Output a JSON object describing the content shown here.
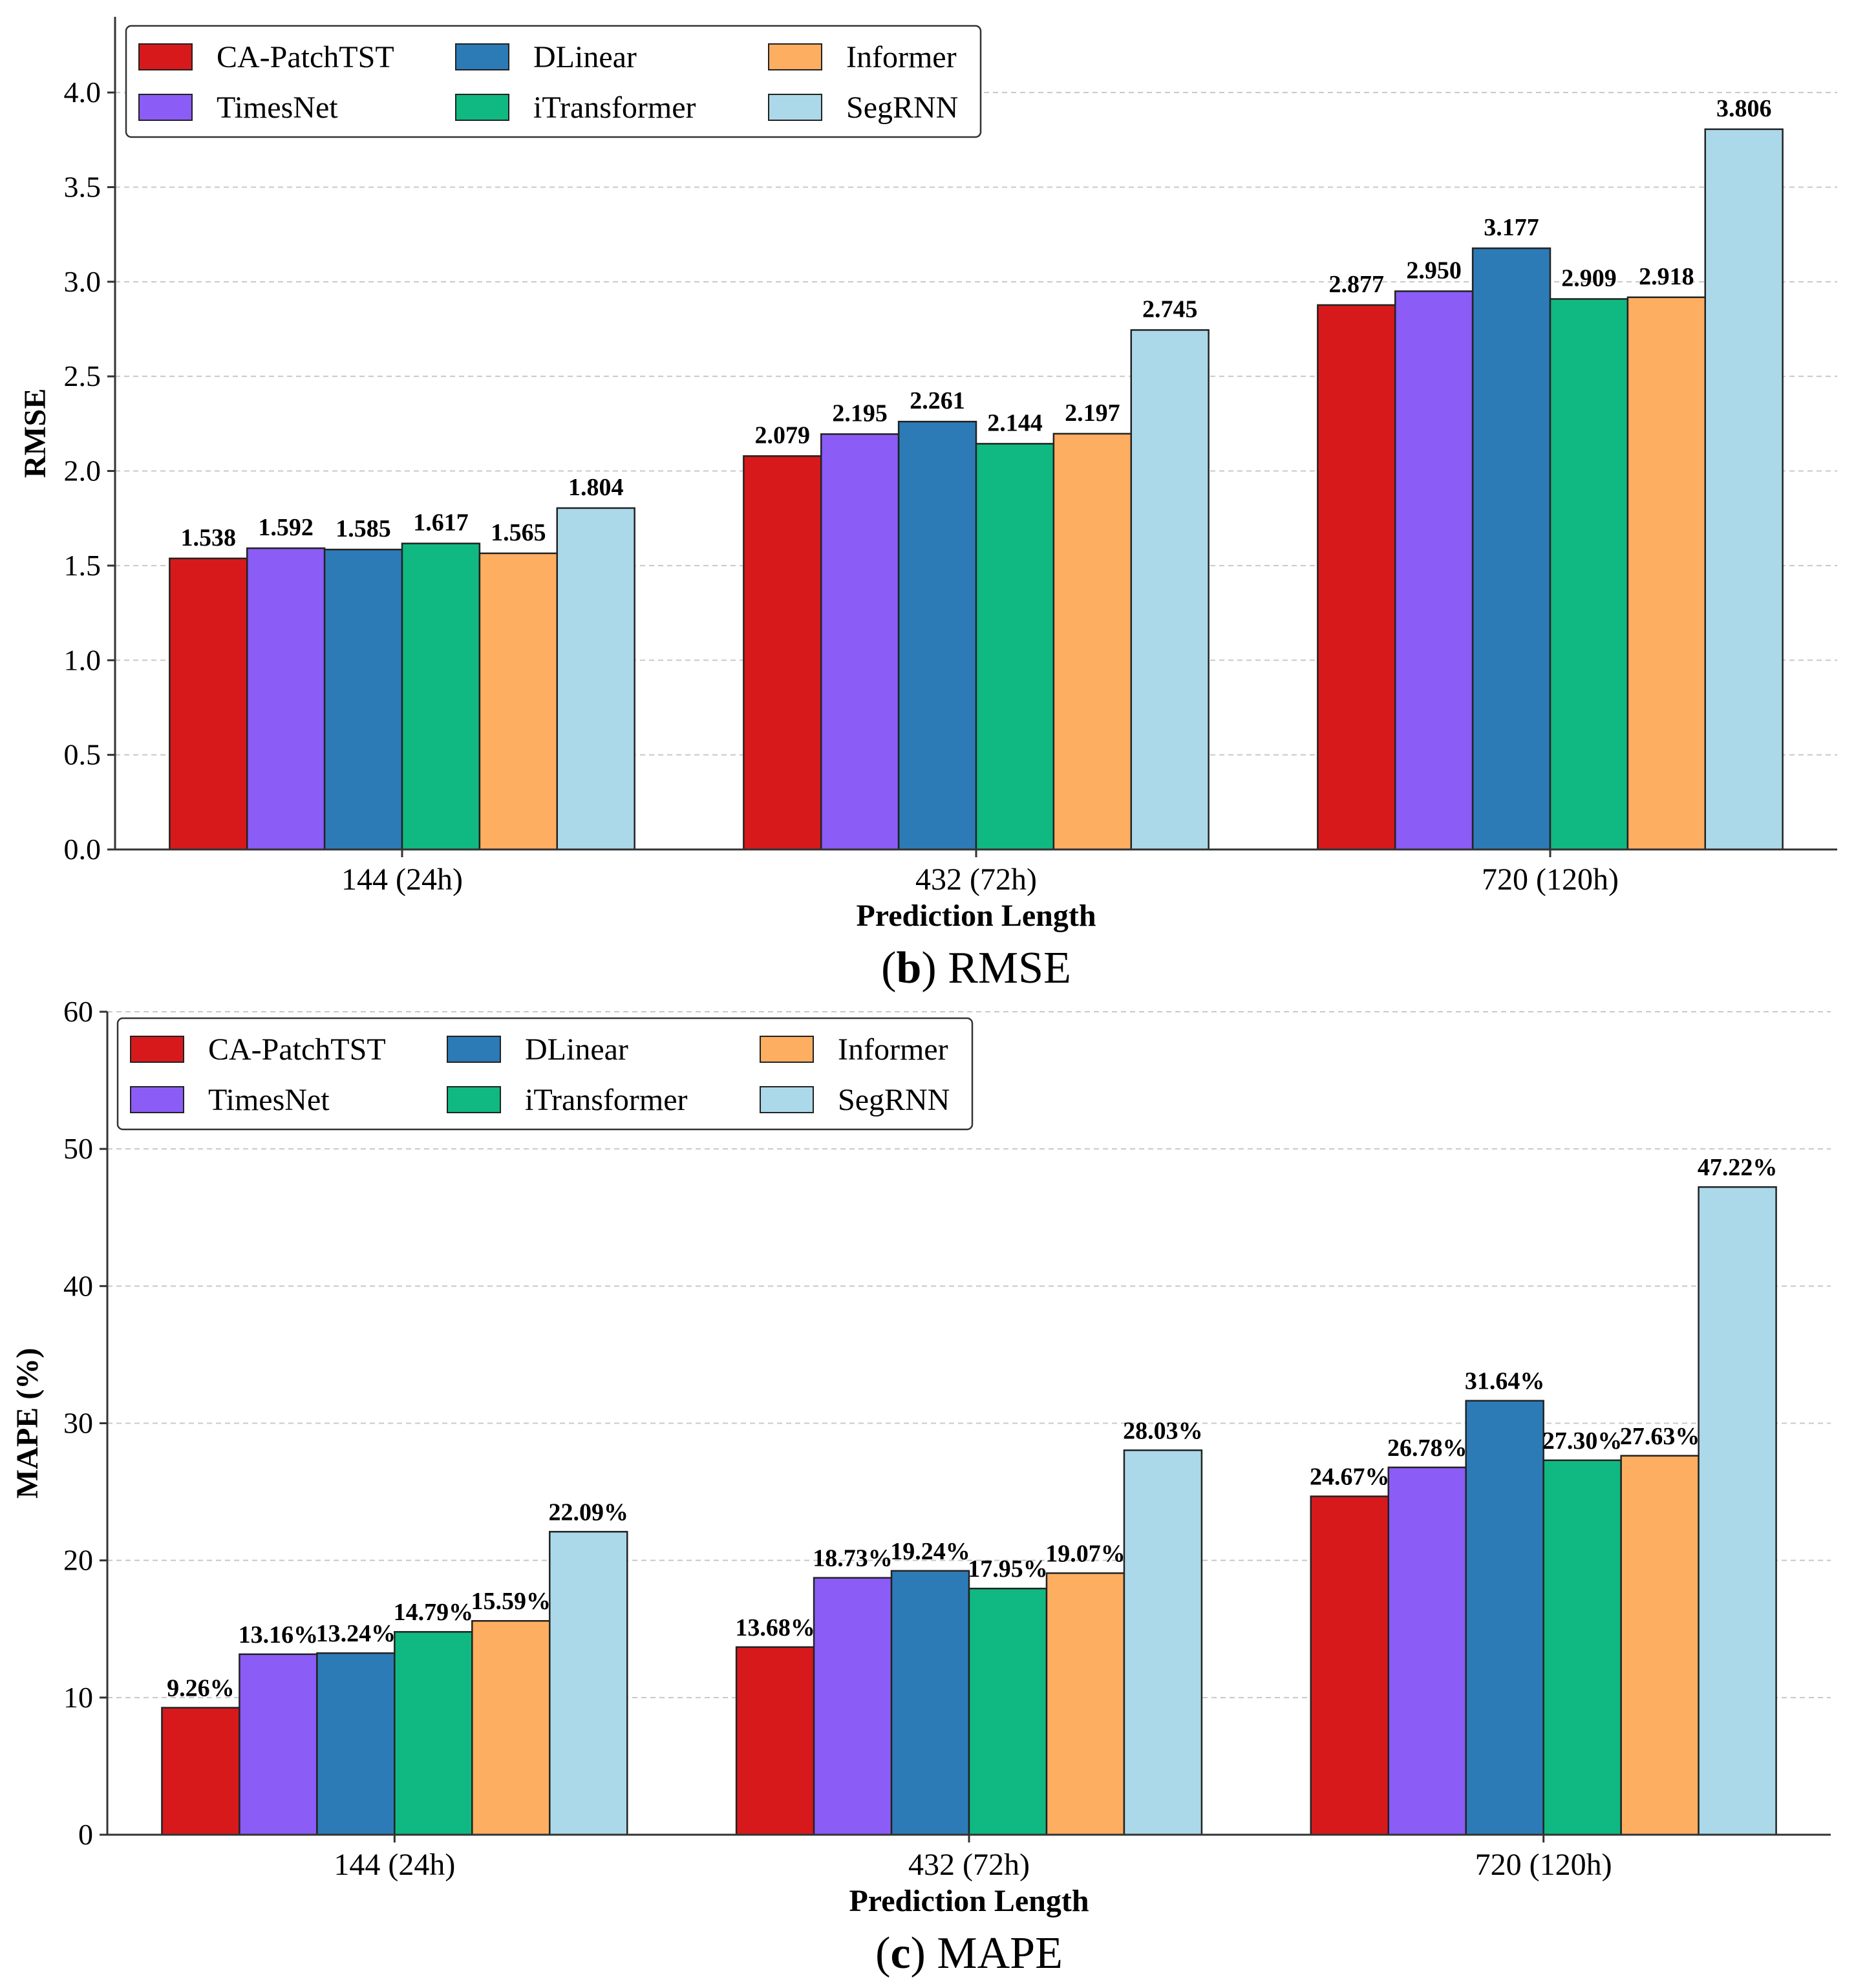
{
  "chart_data": [
    {
      "id": "rmse",
      "type": "bar",
      "caption_letter": "b",
      "caption_text": " RMSE",
      "xlabel": "Prediction Length",
      "ylabel": "RMSE",
      "ylim": [
        0,
        4.4
      ],
      "yticks": [
        "0.0",
        "0.5",
        "1.0",
        "1.5",
        "2.0",
        "2.5",
        "3.0",
        "3.5",
        "4.0"
      ],
      "ytick_values": [
        0,
        0.5,
        1.0,
        1.5,
        2.0,
        2.5,
        3.0,
        3.5,
        4.0
      ],
      "grid": true,
      "legend_position": "top-left",
      "value_format": "fixed3",
      "categories": [
        "144 (24h)",
        "432 (72h)",
        "720 (120h)"
      ],
      "series": [
        {
          "name": "CA-PatchTST",
          "values": [
            1.538,
            2.079,
            2.877
          ]
        },
        {
          "name": "TimesNet",
          "values": [
            1.592,
            2.195,
            2.95
          ]
        },
        {
          "name": "DLinear",
          "values": [
            1.585,
            2.261,
            3.177
          ]
        },
        {
          "name": "iTransformer",
          "values": [
            1.617,
            2.144,
            2.909
          ]
        },
        {
          "name": "Informer",
          "values": [
            1.565,
            2.197,
            2.918
          ]
        },
        {
          "name": "SegRNN",
          "values": [
            1.804,
            2.745,
            3.806
          ]
        }
      ],
      "labels": [
        [
          "1.538",
          "2.079",
          "2.877"
        ],
        [
          "1.592",
          "2.195",
          "2.950"
        ],
        [
          "1.585",
          "2.261",
          "3.177"
        ],
        [
          "1.617",
          "2.144",
          "2.909"
        ],
        [
          "1.565",
          "2.197",
          "2.918"
        ],
        [
          "1.804",
          "2.745",
          "3.806"
        ]
      ]
    },
    {
      "id": "mape",
      "type": "bar",
      "caption_letter": "c",
      "caption_text": " MAPE",
      "xlabel": "Prediction Length",
      "ylabel": "MAPE (%)",
      "ylim": [
        0,
        60
      ],
      "yticks": [
        "0",
        "10",
        "20",
        "30",
        "40",
        "50",
        "60"
      ],
      "ytick_values": [
        0,
        10,
        20,
        30,
        40,
        50,
        60
      ],
      "grid": true,
      "legend_position": "top-left",
      "categories": [
        "144 (24h)",
        "432 (72h)",
        "720 (120h)"
      ],
      "series": [
        {
          "name": "CA-PatchTST",
          "values": [
            9.26,
            13.68,
            24.67
          ]
        },
        {
          "name": "TimesNet",
          "values": [
            13.16,
            18.73,
            26.78
          ]
        },
        {
          "name": "DLinear",
          "values": [
            13.24,
            19.24,
            31.64
          ]
        },
        {
          "name": "iTransformer",
          "values": [
            14.79,
            17.95,
            27.3
          ]
        },
        {
          "name": "Informer",
          "values": [
            15.59,
            19.07,
            27.63
          ]
        },
        {
          "name": "SegRNN",
          "values": [
            22.09,
            28.03,
            47.22
          ]
        }
      ],
      "labels": [
        [
          "9.26%",
          "13.68%",
          "24.67%"
        ],
        [
          "13.16%",
          "18.73%",
          "26.78%"
        ],
        [
          "13.24%",
          "19.24%",
          "31.64%"
        ],
        [
          "14.79%",
          "17.95%",
          "27.30%"
        ],
        [
          "15.59%",
          "19.07%",
          "27.63%"
        ],
        [
          "22.09%",
          "28.03%",
          "47.22%"
        ]
      ]
    }
  ],
  "colors": {
    "CA-PatchTST": "#d7191c",
    "TimesNet": "#8b5cf6",
    "DLinear": "#2c7bb6",
    "iTransformer": "#10b981",
    "Informer": "#fdae61",
    "SegRNN": "#abd9e9"
  }
}
